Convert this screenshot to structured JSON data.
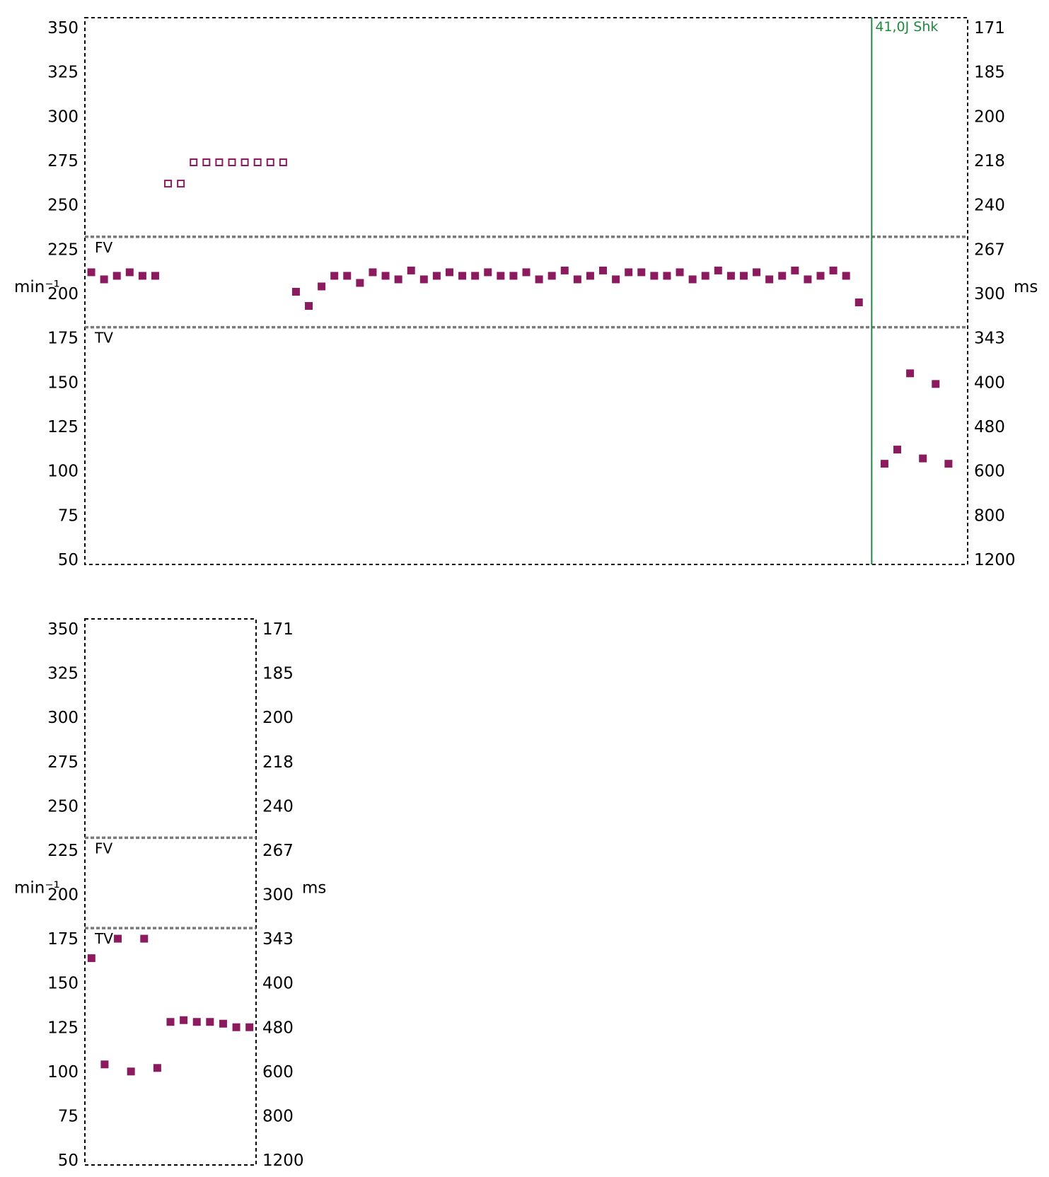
{
  "colors": {
    "marker": "#8b1a5e",
    "threshold_line": "#7a7a7a",
    "event_line": "#1e8a3c",
    "frame": "#000000"
  },
  "chart_data": [
    {
      "type": "scatter",
      "left_ylabel": "min⁻¹",
      "right_ylabel": "ms",
      "ylim": [
        50,
        350
      ],
      "left_ticks": [
        "350",
        "325",
        "300",
        "275",
        "250",
        "225",
        "200",
        "175",
        "150",
        "125",
        "100",
        "75",
        "50"
      ],
      "right_ticks": [
        "171",
        "185",
        "200",
        "218",
        "240",
        "267",
        "300",
        "343",
        "400",
        "480",
        "600",
        "800",
        "1200"
      ],
      "grid": false,
      "legend": "none",
      "thresholds": [
        {
          "label": "FV",
          "value": 232
        },
        {
          "label": "TV",
          "value": 181
        }
      ],
      "event": {
        "label": "41,0J Shk",
        "x": 61.5
      },
      "xlim": [
        0,
        69
      ],
      "series": [
        {
          "style": "filled",
          "points": [
            [
              0.5,
              212
            ],
            [
              1.5,
              208
            ],
            [
              2.5,
              210
            ],
            [
              3.5,
              212
            ],
            [
              4.5,
              210
            ],
            [
              5.5,
              210
            ],
            [
              16.5,
              201
            ],
            [
              17.5,
              193
            ],
            [
              18.5,
              204
            ],
            [
              19.5,
              210
            ],
            [
              20.5,
              210
            ],
            [
              21.5,
              206
            ],
            [
              22.5,
              212
            ],
            [
              23.5,
              210
            ],
            [
              24.5,
              208
            ],
            [
              25.5,
              213
            ],
            [
              26.5,
              208
            ],
            [
              27.5,
              210
            ],
            [
              28.5,
              212
            ],
            [
              29.5,
              210
            ],
            [
              30.5,
              210
            ],
            [
              31.5,
              212
            ],
            [
              32.5,
              210
            ],
            [
              33.5,
              210
            ],
            [
              34.5,
              212
            ],
            [
              35.5,
              208
            ],
            [
              36.5,
              210
            ],
            [
              37.5,
              213
            ],
            [
              38.5,
              208
            ],
            [
              39.5,
              210
            ],
            [
              40.5,
              213
            ],
            [
              41.5,
              208
            ],
            [
              42.5,
              212
            ],
            [
              43.5,
              212
            ],
            [
              44.5,
              210
            ],
            [
              45.5,
              210
            ],
            [
              46.5,
              212
            ],
            [
              47.5,
              208
            ],
            [
              48.5,
              210
            ],
            [
              49.5,
              213
            ],
            [
              50.5,
              210
            ],
            [
              51.5,
              210
            ],
            [
              52.5,
              212
            ],
            [
              53.5,
              208
            ],
            [
              54.5,
              210
            ],
            [
              55.5,
              213
            ],
            [
              56.5,
              208
            ],
            [
              57.5,
              210
            ],
            [
              58.5,
              213
            ],
            [
              59.5,
              210
            ],
            [
              60.5,
              195
            ],
            [
              62.5,
              104
            ],
            [
              63.5,
              112
            ],
            [
              64.5,
              155
            ],
            [
              65.5,
              107
            ],
            [
              66.5,
              149
            ],
            [
              67.5,
              104
            ]
          ]
        },
        {
          "style": "hollow",
          "points": [
            [
              6.5,
              262
            ],
            [
              7.5,
              262
            ],
            [
              8.5,
              274
            ],
            [
              9.5,
              274
            ],
            [
              10.5,
              274
            ],
            [
              11.5,
              274
            ],
            [
              12.5,
              274
            ],
            [
              13.5,
              274
            ],
            [
              14.5,
              274
            ],
            [
              15.5,
              274
            ]
          ]
        }
      ]
    },
    {
      "type": "scatter",
      "left_ylabel": "min⁻¹",
      "right_ylabel": "ms",
      "ylim": [
        50,
        350
      ],
      "left_ticks": [
        "350",
        "325",
        "300",
        "275",
        "250",
        "225",
        "200",
        "175",
        "150",
        "125",
        "100",
        "75",
        "50"
      ],
      "right_ticks": [
        "171",
        "185",
        "200",
        "218",
        "240",
        "267",
        "300",
        "343",
        "400",
        "480",
        "600",
        "800",
        "1200"
      ],
      "grid": false,
      "legend": "none",
      "thresholds": [
        {
          "label": "FV",
          "value": 232
        },
        {
          "label": "TV",
          "value": 181
        }
      ],
      "xlim": [
        0,
        13
      ],
      "series": [
        {
          "style": "filled",
          "points": [
            [
              0.5,
              164
            ],
            [
              1.5,
              104
            ],
            [
              2.5,
              175
            ],
            [
              3.5,
              100
            ],
            [
              4.5,
              175
            ],
            [
              5.5,
              102
            ],
            [
              6.5,
              128
            ],
            [
              7.5,
              129
            ],
            [
              8.5,
              128
            ],
            [
              9.5,
              128
            ],
            [
              10.5,
              127
            ],
            [
              11.5,
              125
            ],
            [
              12.5,
              125
            ]
          ]
        }
      ]
    }
  ]
}
